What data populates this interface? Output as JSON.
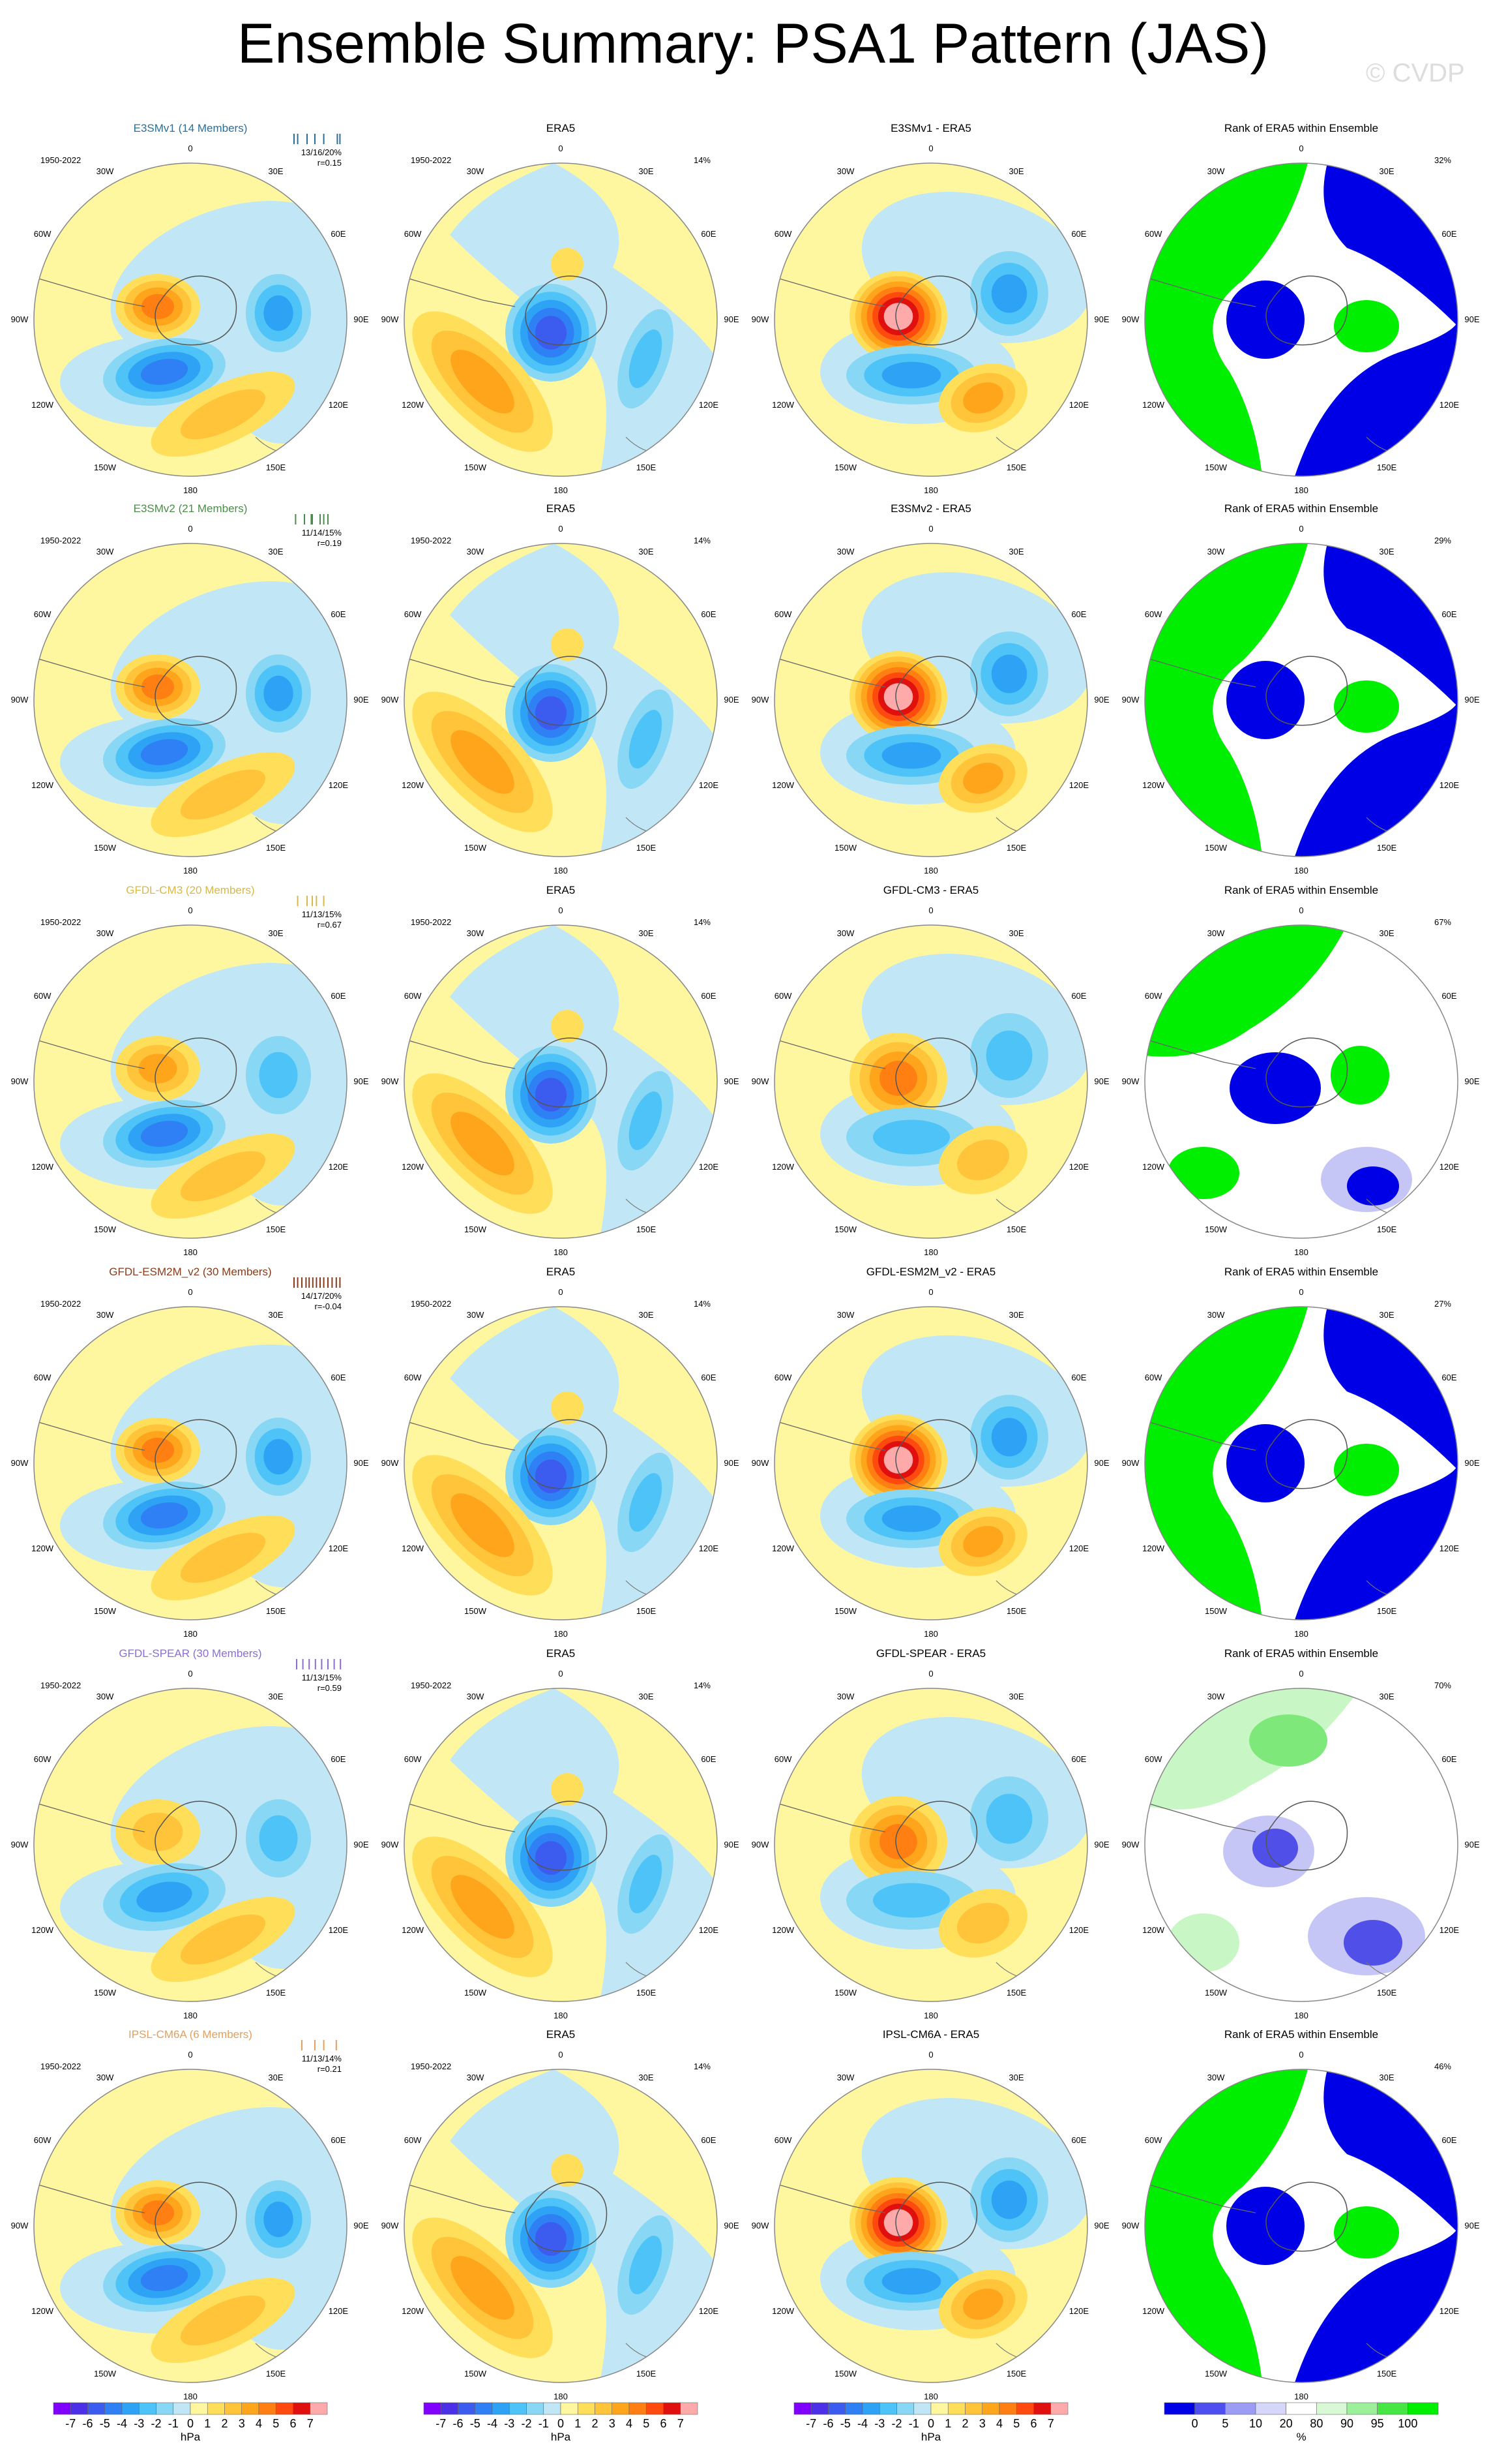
{
  "title": "Ensemble Summary: PSA1 Pattern (JAS)",
  "watermark": "© CVDP",
  "years": "1950-2022",
  "obs_name": "ERA5",
  "obs_pct": "14%",
  "rank_title": "Rank of ERA5 within Ensemble",
  "lon_labels": [
    "0",
    "30E",
    "60E",
    "90E",
    "120E",
    "150E",
    "180",
    "150W",
    "120W",
    "90W",
    "60W",
    "30W"
  ],
  "rows": [
    {
      "model": "E3SMv1 (14 Members)",
      "model_color": "#2a6f97",
      "stats": "13/16/20%",
      "r": "r=0.15",
      "diff_title": "E3SMv1 - ERA5",
      "rank_pct": "32%",
      "type": "A",
      "spread": [
        0.05,
        0.12,
        0.3,
        0.45,
        0.62,
        0.88,
        0.93
      ]
    },
    {
      "model": "E3SMv2 (21 Members)",
      "model_color": "#4c8c4a",
      "stats": "11/14/15%",
      "r": "r=0.19",
      "diff_title": "E3SMv2 - ERA5",
      "rank_pct": "29%",
      "type": "A",
      "spread": [
        0.08,
        0.25,
        0.38,
        0.4,
        0.55,
        0.62,
        0.7
      ]
    },
    {
      "model": "GFDL-CM3 (20 Members)",
      "model_color": "#d9b84a",
      "stats": "11/13/15%",
      "r": "r=0.67",
      "diff_title": "GFDL-CM3 - ERA5",
      "rank_pct": "67%",
      "type": "B",
      "spread": [
        0.12,
        0.3,
        0.4,
        0.48,
        0.62
      ]
    },
    {
      "model": "GFDL-ESM2M_v2 (30 Members)",
      "model_color": "#8b3a1a",
      "stats": "14/17/20%",
      "r": "r=-0.04",
      "diff_title": "GFDL-ESM2M_v2 - ERA5",
      "rank_pct": "27%",
      "type": "A",
      "spread": [
        0.05,
        0.12,
        0.2,
        0.28,
        0.34,
        0.41,
        0.48,
        0.55,
        0.62,
        0.7,
        0.78,
        0.86,
        0.93
      ]
    },
    {
      "model": "GFDL-SPEAR (30 Members)",
      "model_color": "#8a6fd1",
      "stats": "11/13/15%",
      "r": "r=0.59",
      "diff_title": "GFDL-SPEAR - ERA5",
      "rank_pct": "70%",
      "type": "C",
      "spread": [
        0.1,
        0.22,
        0.34,
        0.46,
        0.58,
        0.7,
        0.82,
        0.94
      ]
    },
    {
      "model": "IPSL-CM6A (6 Members)",
      "model_color": "#e0a060",
      "stats": "11/13/14%",
      "r": "r=0.21",
      "diff_title": "IPSL-CM6A - ERA5",
      "rank_pct": "46%",
      "type": "A",
      "spread": [
        0.2,
        0.45,
        0.62,
        0.86
      ]
    }
  ],
  "hpa_colorbar": {
    "labels": [
      "-7",
      "-6",
      "-5",
      "-4",
      "-3",
      "-2",
      "-1",
      "0",
      "1",
      "2",
      "3",
      "4",
      "5",
      "6",
      "7"
    ],
    "unit": "hPa",
    "colors": [
      "#7f00ff",
      "#4b30e8",
      "#3c5cf0",
      "#2f7ff5",
      "#2ea2f5",
      "#4dc3f7",
      "#88d7f5",
      "#c1e7f6",
      "#fff7a0",
      "#ffdf5a",
      "#ffc43a",
      "#ffa51c",
      "#ff7f12",
      "#ff4a0f",
      "#e0100f",
      "#ffaaaa"
    ]
  },
  "rank_colorbar": {
    "labels": [
      "0",
      "5",
      "10",
      "20",
      "80",
      "90",
      "95",
      "100"
    ],
    "unit": "%",
    "colors": [
      "#0000e6",
      "#4f4ff0",
      "#9c9cf5",
      "#d6d6fb",
      "#ffffff",
      "#d8f8d6",
      "#9cf09a",
      "#46e643",
      "#00ee00"
    ]
  }
}
